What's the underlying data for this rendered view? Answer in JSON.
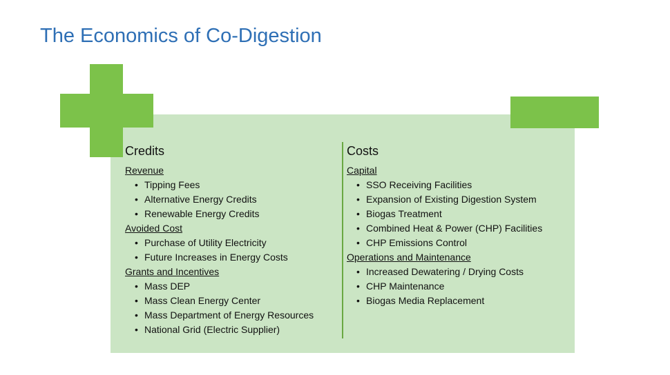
{
  "title": "The Economics of Co-Digestion",
  "colors": {
    "title": "#2e6fb5",
    "panel": "#cbe5c4",
    "accent": "#7cc24a",
    "divider": "#6aa842"
  },
  "icons": {
    "plus": "plus-icon",
    "minus": "minus-icon"
  },
  "columns": [
    {
      "heading": "Credits",
      "groups": [
        {
          "heading": "Revenue",
          "items": [
            "Tipping Fees",
            "Alternative Energy Credits",
            "Renewable Energy Credits"
          ]
        },
        {
          "heading": "Avoided Cost",
          "items": [
            "Purchase of Utility Electricity",
            "Future Increases in Energy Costs"
          ]
        },
        {
          "heading": "Grants and Incentives",
          "items": [
            "Mass DEP",
            "Mass Clean Energy Center",
            "Mass Department of Energy Resources",
            "National Grid (Electric Supplier)"
          ]
        }
      ]
    },
    {
      "heading": "Costs",
      "groups": [
        {
          "heading": "Capital",
          "items": [
            "SSO Receiving Facilities",
            "Expansion of Existing Digestion System",
            "Biogas Treatment",
            "Combined Heat & Power (CHP) Facilities",
            "CHP Emissions Control"
          ]
        },
        {
          "heading": "Operations and Maintenance",
          "items": [
            "Increased Dewatering / Drying Costs",
            "CHP Maintenance",
            "Biogas Media Replacement"
          ]
        }
      ]
    }
  ]
}
